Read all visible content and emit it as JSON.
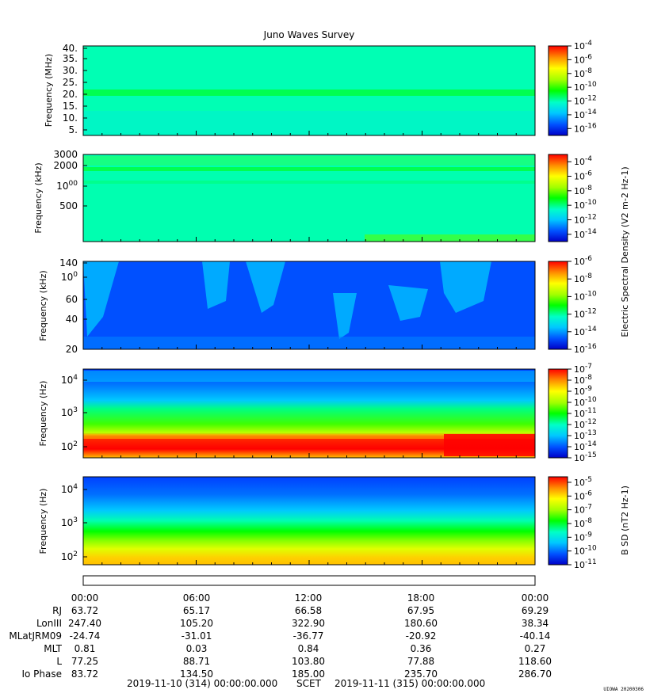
{
  "title": "Juno Waves Survey",
  "colors": {
    "colorscale": [
      "#0000c8",
      "#0050ff",
      "#00c8ff",
      "#00ffc8",
      "#00ff00",
      "#a0ff00",
      "#ffff00",
      "#ff9000",
      "#ff0000"
    ]
  },
  "chart_data": [
    {
      "type": "heatmap",
      "panel": "HFR high",
      "ylabel": "Frequency (MHz)",
      "yticks": [
        "40.",
        "35.",
        "30.",
        "25.",
        "20.",
        "15.",
        "10.",
        "5."
      ],
      "ylim": [
        3,
        41
      ],
      "x": [
        "00:00",
        "06:00",
        "12:00",
        "18:00",
        "00:00"
      ],
      "colorbar": {
        "ticks": [
          "10-4",
          "10-6",
          "10-8",
          "10-10",
          "10-12",
          "10-14",
          "10-16"
        ],
        "range_log": [
          -17,
          -4
        ]
      },
      "description": "uniform background near 10-12, bright band near 21 MHz"
    },
    {
      "type": "heatmap",
      "panel": "HFR low",
      "ylabel": "Frequency (kHz)",
      "yticks": [
        "3000",
        "2000",
        "1000",
        "500"
      ],
      "ylim_log": [
        140,
        3000
      ],
      "colorbar": {
        "ticks": [
          "10-4",
          "10-6",
          "10-8",
          "10-10",
          "10-12",
          "10-14"
        ],
        "range_log": [
          -15,
          -3
        ]
      }
    },
    {
      "type": "heatmap",
      "panel": "LFR high",
      "ylabel": "Frequency (kHz)",
      "yticks": [
        "140",
        "100",
        "60",
        "40",
        "20"
      ],
      "ylim_log": [
        20,
        140
      ],
      "colorbar": {
        "ticks": [
          "10-6",
          "10-8",
          "10-10",
          "10-12",
          "10-14",
          "10-16"
        ],
        "range_log": [
          -16,
          -6
        ]
      }
    },
    {
      "type": "heatmap",
      "panel": "LFR low",
      "ylabel": "Frequency (Hz)",
      "yticks": [
        "104",
        "103",
        "102"
      ],
      "ylim_log": [
        50,
        20000
      ],
      "colorbar": {
        "ticks": [
          "10-7",
          "10-8",
          "10-9",
          "10-10",
          "10-11",
          "10-12",
          "10-13",
          "10-14",
          "10-15"
        ],
        "range_log": [
          -15,
          -7
        ]
      }
    },
    {
      "type": "heatmap",
      "panel": "Magnetic",
      "ylabel": "Frequency (Hz)",
      "yticks": [
        "104",
        "103",
        "102"
      ],
      "ylim_log": [
        50,
        20000
      ],
      "colorbar": {
        "ticks": [
          "10-5",
          "10-6",
          "10-7",
          "10-8",
          "10-9",
          "10-10",
          "10-11"
        ],
        "range_log": [
          -11,
          -4.6
        ]
      }
    }
  ],
  "colorbar_label_electric": "Electric Spectral Density (V2 m-2 Hz-1)",
  "colorbar_label_magnetic": "B SD (nT2 Hz-1)",
  "ephemeris": {
    "time_labels": [
      "00:00",
      "06:00",
      "12:00",
      "18:00",
      "00:00"
    ],
    "rows": [
      {
        "label": "RJ",
        "values": [
          "63.72",
          "65.17",
          "66.58",
          "67.95",
          "69.29"
        ]
      },
      {
        "label": "LonIII",
        "values": [
          "247.40",
          "105.20",
          "322.90",
          "180.60",
          "38.34"
        ]
      },
      {
        "label": "MLatJRM09",
        "values": [
          "-24.74",
          "-31.01",
          "-36.77",
          "-20.92",
          "-40.14"
        ]
      },
      {
        "label": "MLT",
        "values": [
          "0.81",
          "0.03",
          "0.84",
          "0.36",
          "0.27"
        ]
      },
      {
        "label": "L",
        "values": [
          "77.25",
          "88.71",
          "103.80",
          "77.88",
          "118.60"
        ]
      },
      {
        "label": "Io Phase",
        "values": [
          "83.72",
          "134.50",
          "185.00",
          "235.70",
          "286.70"
        ]
      }
    ]
  },
  "footer": {
    "start": "2019-11-10 (314) 00:00:00.000",
    "scet": "SCET",
    "end": "2019-11-11 (315) 00:00:00.000"
  },
  "stamp": "UIOWA 20200306"
}
